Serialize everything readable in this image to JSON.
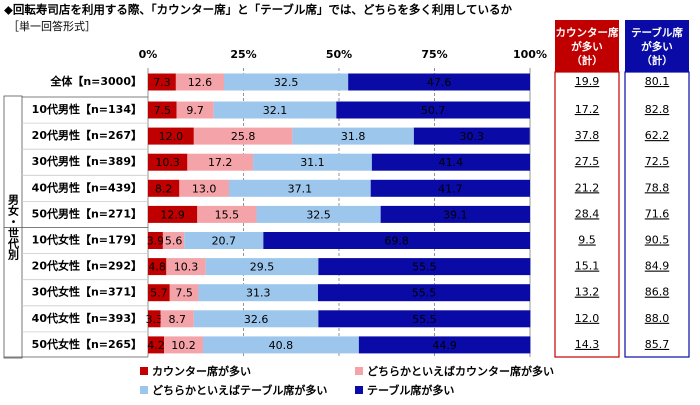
{
  "chart_data": {
    "type": "stacked-bar-horizontal",
    "title": "◆回転寿司店を利用する際、「カウンター席」と「テーブル席」では、どちらを多く利用しているか",
    "subtitle": "［単一回答形式］",
    "group_label": "男女・世代別",
    "categories": [
      "全体【n=3000】",
      "10代男性【n=134】",
      "20代男性【n=267】",
      "30代男性【n=389】",
      "40代男性【n=439】",
      "50代男性【n=271】",
      "10代女性【n=179】",
      "20代女性【n=292】",
      "30代女性【n=371】",
      "40代女性【n=393】",
      "50代女性【n=265】"
    ],
    "xlim": [
      0,
      100
    ],
    "xticks": [
      {
        "value": 0,
        "label": "0%"
      },
      {
        "value": 25,
        "label": "25%"
      },
      {
        "value": 50,
        "label": "50%"
      },
      {
        "value": 75,
        "label": "75%"
      },
      {
        "value": 100,
        "label": "100%"
      }
    ],
    "series": [
      {
        "name": "カウンター席が多い",
        "color": "#c00000",
        "values": [
          7.3,
          7.5,
          12.0,
          10.3,
          8.2,
          12.9,
          3.9,
          4.8,
          5.7,
          3.3,
          4.2
        ],
        "value_labels": [
          "7.3",
          "7.5",
          "12.0",
          "10.3",
          "8.2",
          "12.9",
          "3.9",
          "4.8",
          "5.7",
          "3.3",
          "4.2"
        ]
      },
      {
        "name": "どちらかといえばカウンター席が多い",
        "color": "#f4a3a8",
        "values": [
          12.6,
          9.7,
          25.8,
          17.2,
          13.0,
          15.5,
          5.6,
          10.3,
          7.5,
          8.7,
          10.2
        ],
        "value_labels": [
          "12.6",
          "9.7",
          "25.8",
          "17.2",
          "13.0",
          "15.5",
          "5.6",
          "10.3",
          "7.5",
          "8.7",
          "10.2"
        ]
      },
      {
        "name": "どちらかといえばテーブル席が多い",
        "color": "#9dc6ec",
        "values": [
          32.5,
          32.1,
          31.8,
          31.1,
          37.1,
          32.5,
          20.7,
          29.5,
          31.3,
          32.6,
          40.8
        ],
        "value_labels": [
          "32.5",
          "32.1",
          "31.8",
          "31.1",
          "37.1",
          "32.5",
          "20.7",
          "29.5",
          "31.3",
          "32.6",
          "40.8"
        ]
      },
      {
        "name": "テーブル席が多い",
        "color": "#0a0aa6",
        "values": [
          47.6,
          50.7,
          30.3,
          41.4,
          41.7,
          39.1,
          69.8,
          55.5,
          55.5,
          55.5,
          44.9
        ],
        "value_labels": [
          "47.6",
          "50.7",
          "30.3",
          "41.4",
          "41.7",
          "39.1",
          "69.8",
          "55.5",
          "55.5",
          "55.5",
          "44.9"
        ]
      }
    ],
    "summary": [
      {
        "header": [
          "カウンター席",
          "が多い",
          "（計）"
        ],
        "color": "#c00000",
        "values": [
          19.9,
          17.2,
          37.8,
          27.5,
          21.2,
          28.4,
          9.5,
          15.1,
          13.2,
          12.0,
          14.3
        ],
        "value_labels": [
          "19.9",
          "17.2",
          "37.8",
          "27.5",
          "21.2",
          "28.4",
          "9.5",
          "15.1",
          "13.2",
          "12.0",
          "14.3"
        ]
      },
      {
        "header": [
          "テーブル席",
          "が多い",
          "（計）"
        ],
        "color": "#0a0aa6",
        "values": [
          80.1,
          82.8,
          62.2,
          72.5,
          78.8,
          71.6,
          90.5,
          84.9,
          86.8,
          88.0,
          85.7
        ],
        "value_labels": [
          "80.1",
          "82.8",
          "62.2",
          "72.5",
          "78.8",
          "71.6",
          "90.5",
          "84.9",
          "86.8",
          "88.0",
          "85.7"
        ]
      }
    ]
  }
}
